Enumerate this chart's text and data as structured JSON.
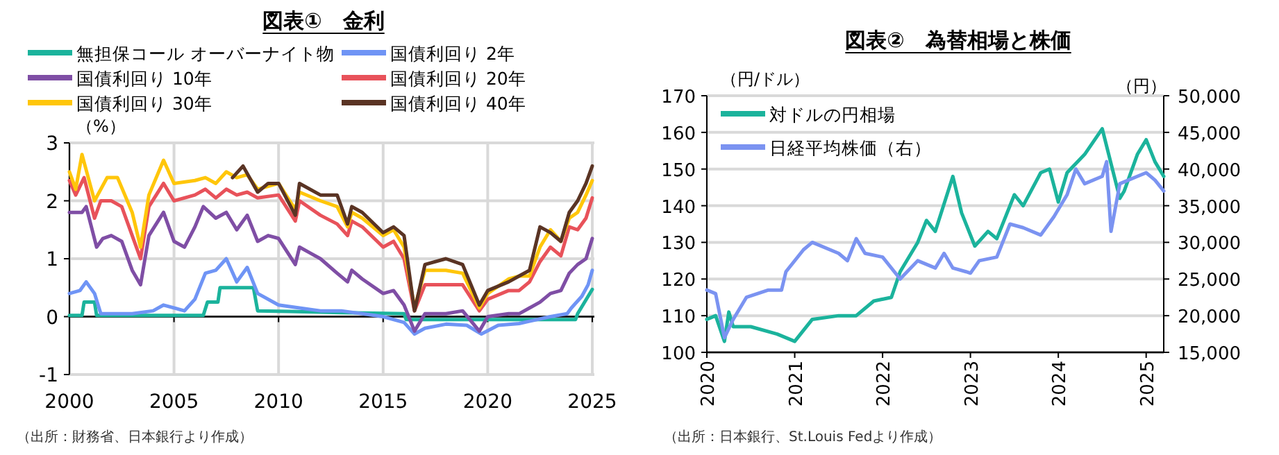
{
  "chart_data": [
    {
      "type": "line",
      "title": "図表①　金利",
      "ylabel": "（%）",
      "xlim": [
        2000,
        2025.1
      ],
      "xticks": [
        2000,
        2005,
        2010,
        2015,
        2020,
        2025
      ],
      "ylim": [
        -1,
        3
      ],
      "yticks": [
        -1,
        0,
        1,
        2,
        3
      ],
      "grid": true,
      "legend": "top",
      "annotations": [
        "（出所：財務省、日本銀行より作成）"
      ],
      "series": [
        {
          "name": "無担保コール オーバーナイト物",
          "color": "#1bb39c",
          "x": [
            2000,
            2000.6,
            2000.7,
            2001.2,
            2001.3,
            2006.4,
            2006.6,
            2007.1,
            2007.2,
            2008.8,
            2008.9,
            2009.0,
            2010.5,
            2013,
            2016,
            2016.1,
            2024.2,
            2024.3,
            2024.6,
            2025
          ],
          "values": [
            0.02,
            0.02,
            0.25,
            0.25,
            0.02,
            0.02,
            0.25,
            0.25,
            0.5,
            0.5,
            0.3,
            0.1,
            0.09,
            0.07,
            0.05,
            -0.05,
            -0.05,
            0.05,
            0.23,
            0.47
          ]
        },
        {
          "name": "国債利回り 2年",
          "color": "#6f94f5",
          "x": [
            2000,
            2000.5,
            2000.8,
            2001.2,
            2001.5,
            2003,
            2004,
            2004.5,
            2005.5,
            2006,
            2006.5,
            2007,
            2007.5,
            2008,
            2008.5,
            2009,
            2010,
            2011,
            2012,
            2013,
            2014,
            2015,
            2016,
            2016.5,
            2017,
            2018,
            2019,
            2019.7,
            2020.5,
            2021.5,
            2022,
            2023,
            2023.8,
            2024,
            2024.5,
            2024.8,
            2025
          ],
          "values": [
            0.4,
            0.45,
            0.6,
            0.4,
            0.05,
            0.05,
            0.1,
            0.2,
            0.1,
            0.3,
            0.75,
            0.8,
            1.0,
            0.6,
            0.85,
            0.4,
            0.2,
            0.15,
            0.1,
            0.1,
            0.05,
            0.0,
            -0.1,
            -0.3,
            -0.2,
            -0.13,
            -0.15,
            -0.3,
            -0.15,
            -0.12,
            -0.08,
            0.0,
            0.05,
            0.15,
            0.35,
            0.55,
            0.8
          ]
        },
        {
          "name": "国債利回り 10年",
          "color": "#7f4ea5",
          "x": [
            2000,
            2000.6,
            2000.8,
            2001.3,
            2001.6,
            2002,
            2002.5,
            2003,
            2003.4,
            2003.8,
            2004.5,
            2005,
            2005.5,
            2006,
            2006.4,
            2007,
            2007.5,
            2008,
            2008.5,
            2009,
            2009.5,
            2010,
            2010.8,
            2011,
            2011.5,
            2012,
            2012.8,
            2013.3,
            2013.5,
            2014,
            2015,
            2015.5,
            2016,
            2016.5,
            2017,
            2018,
            2018.8,
            2019.6,
            2020,
            2021,
            2021.5,
            2022,
            2022.5,
            2023,
            2023.5,
            2023.9,
            2024.3,
            2024.7,
            2025
          ],
          "values": [
            1.8,
            1.8,
            1.9,
            1.2,
            1.35,
            1.4,
            1.3,
            0.8,
            0.55,
            1.4,
            1.8,
            1.3,
            1.2,
            1.55,
            1.9,
            1.7,
            1.8,
            1.5,
            1.75,
            1.3,
            1.4,
            1.35,
            0.9,
            1.2,
            1.1,
            1.0,
            0.75,
            0.6,
            0.8,
            0.65,
            0.4,
            0.45,
            0.2,
            -0.25,
            0.05,
            0.05,
            0.1,
            -0.25,
            0.0,
            0.05,
            0.05,
            0.15,
            0.25,
            0.4,
            0.45,
            0.75,
            0.9,
            1.0,
            1.35
          ]
        },
        {
          "name": "国債利回り 20年",
          "color": "#e8525a",
          "x": [
            2000,
            2000.3,
            2000.7,
            2001.2,
            2001.5,
            2002,
            2002.5,
            2003,
            2003.4,
            2003.8,
            2004.5,
            2005,
            2006,
            2006.5,
            2007,
            2007.5,
            2008,
            2008.5,
            2009,
            2010,
            2010.8,
            2011,
            2012,
            2012.8,
            2013.3,
            2013.5,
            2014,
            2015,
            2015.5,
            2016,
            2016.5,
            2017,
            2018,
            2018.8,
            2019.6,
            2020,
            2021,
            2021.5,
            2022,
            2022.5,
            2023,
            2023.5,
            2023.9,
            2024.3,
            2024.7,
            2025
          ],
          "values": [
            2.35,
            2.1,
            2.4,
            1.7,
            2.0,
            2.0,
            1.9,
            1.4,
            1.0,
            1.9,
            2.3,
            2.0,
            2.1,
            2.2,
            2.05,
            2.2,
            2.1,
            2.15,
            2.05,
            2.1,
            1.65,
            2.0,
            1.75,
            1.6,
            1.4,
            1.65,
            1.55,
            1.2,
            1.3,
            1.0,
            0.1,
            0.55,
            0.55,
            0.55,
            0.1,
            0.3,
            0.45,
            0.45,
            0.6,
            0.95,
            1.2,
            1.05,
            1.55,
            1.5,
            1.7,
            2.05
          ]
        },
        {
          "name": "国債利回り 30年",
          "color": "#ffc60a",
          "x": [
            2000,
            2000.3,
            2000.6,
            2001.2,
            2001.8,
            2002.3,
            2003,
            2003.4,
            2003.8,
            2004.5,
            2005,
            2006,
            2006.5,
            2007,
            2007.5,
            2008,
            2008.5,
            2009,
            2010,
            2010.8,
            2011,
            2012,
            2012.8,
            2013.3,
            2013.5,
            2014,
            2015,
            2015.5,
            2016,
            2016.5,
            2017,
            2018,
            2018.8,
            2019.6,
            2020,
            2021,
            2021.5,
            2022,
            2022.5,
            2023,
            2023.5,
            2023.9,
            2024.3,
            2024.7,
            2025
          ],
          "values": [
            2.5,
            2.2,
            2.8,
            2.0,
            2.4,
            2.4,
            1.8,
            1.2,
            2.1,
            2.7,
            2.3,
            2.35,
            2.4,
            2.3,
            2.5,
            2.4,
            2.45,
            2.2,
            2.3,
            1.85,
            2.15,
            2.0,
            1.9,
            1.55,
            1.8,
            1.7,
            1.4,
            1.5,
            1.2,
            0.15,
            0.8,
            0.8,
            0.75,
            0.15,
            0.4,
            0.65,
            0.7,
            0.7,
            1.2,
            1.5,
            1.3,
            1.7,
            1.8,
            2.1,
            2.35
          ]
        },
        {
          "name": "国債利回り 40年",
          "color": "#5a3424",
          "x": [
            2007.8,
            2008.3,
            2009,
            2009.5,
            2010,
            2010.8,
            2011,
            2012,
            2012.8,
            2013.3,
            2013.5,
            2014,
            2015,
            2015.5,
            2016,
            2016.5,
            2017,
            2018,
            2018.8,
            2019.6,
            2020,
            2021,
            2021.5,
            2022,
            2022.5,
            2023,
            2023.5,
            2023.9,
            2024.3,
            2024.7,
            2025
          ],
          "values": [
            2.4,
            2.6,
            2.15,
            2.3,
            2.3,
            1.75,
            2.3,
            2.1,
            2.1,
            1.6,
            1.9,
            1.8,
            1.45,
            1.55,
            1.4,
            0.1,
            0.9,
            1.0,
            0.9,
            0.2,
            0.45,
            0.6,
            0.7,
            0.8,
            1.55,
            1.45,
            1.3,
            1.8,
            2.0,
            2.3,
            2.6
          ]
        }
      ]
    },
    {
      "type": "line",
      "title": "図表②　為替相場と株価",
      "ylabel": "（円/ドル）",
      "y2label": "（円）",
      "xlim": [
        2020,
        2025.2
      ],
      "xticks": [
        2020,
        2021,
        2022,
        2023,
        2024,
        2025
      ],
      "ylim": [
        100,
        170
      ],
      "yticks": [
        100,
        110,
        120,
        130,
        140,
        150,
        160,
        170
      ],
      "y2lim": [
        15000,
        50000
      ],
      "y2ticks": [
        {
          "value": 15000,
          "label": "15,000"
        },
        {
          "value": 20000,
          "label": "20,000"
        },
        {
          "value": 25000,
          "label": "25,000"
        },
        {
          "value": 30000,
          "label": "30,000"
        },
        {
          "value": 35000,
          "label": "35,000"
        },
        {
          "value": 40000,
          "label": "40,000"
        },
        {
          "value": 45000,
          "label": "45,000"
        },
        {
          "value": 50000,
          "label": "50,000"
        }
      ],
      "grid": "y",
      "legend": "top left",
      "annotations": [
        "（出所：日本銀行、St.Louis Fedより作成）"
      ],
      "series": [
        {
          "name": "対ドルの円相場",
          "color": "#1bb39c",
          "x": [
            2020,
            2020.1,
            2020.2,
            2020.25,
            2020.3,
            2020.5,
            2020.8,
            2021.0,
            2021.2,
            2021.5,
            2021.7,
            2021.9,
            2022.1,
            2022.2,
            2022.4,
            2022.5,
            2022.6,
            2022.8,
            2022.9,
            2023.05,
            2023.2,
            2023.3,
            2023.5,
            2023.6,
            2023.8,
            2023.9,
            2024.0,
            2024.1,
            2024.3,
            2024.5,
            2024.7,
            2024.75,
            2024.9,
            2025.0,
            2025.1,
            2025.2
          ],
          "values": [
            109,
            110,
            103,
            111,
            107,
            107,
            105,
            103,
            109,
            110,
            110,
            114,
            115,
            122,
            130,
            136,
            133,
            148,
            138,
            129,
            133,
            131,
            143,
            140,
            149,
            150,
            141,
            149,
            154,
            161,
            142,
            144,
            154,
            158,
            152,
            148
          ]
        },
        {
          "name": "日経平均株価（右）",
          "color": "#7b93f1",
          "axis": "y2",
          "x": [
            2020,
            2020.1,
            2020.2,
            2020.3,
            2020.45,
            2020.7,
            2020.85,
            2020.9,
            2021.1,
            2021.2,
            2021.5,
            2021.6,
            2021.7,
            2021.8,
            2022.0,
            2022.2,
            2022.4,
            2022.6,
            2022.7,
            2022.8,
            2022.95,
            2023.0,
            2023.1,
            2023.3,
            2023.45,
            2023.6,
            2023.8,
            2023.95,
            2024.1,
            2024.2,
            2024.3,
            2024.5,
            2024.55,
            2024.6,
            2024.7,
            2024.9,
            2025.0,
            2025.1,
            2025.2
          ],
          "values": [
            23500,
            23000,
            17000,
            19500,
            22500,
            23500,
            23500,
            26000,
            29000,
            30000,
            28500,
            27500,
            30500,
            28500,
            28000,
            25000,
            27500,
            26500,
            28500,
            26500,
            26000,
            25800,
            27500,
            28000,
            32500,
            32000,
            31000,
            33500,
            36500,
            40000,
            38000,
            39000,
            41000,
            31500,
            38000,
            39000,
            39500,
            38500,
            37000
          ]
        }
      ]
    }
  ]
}
